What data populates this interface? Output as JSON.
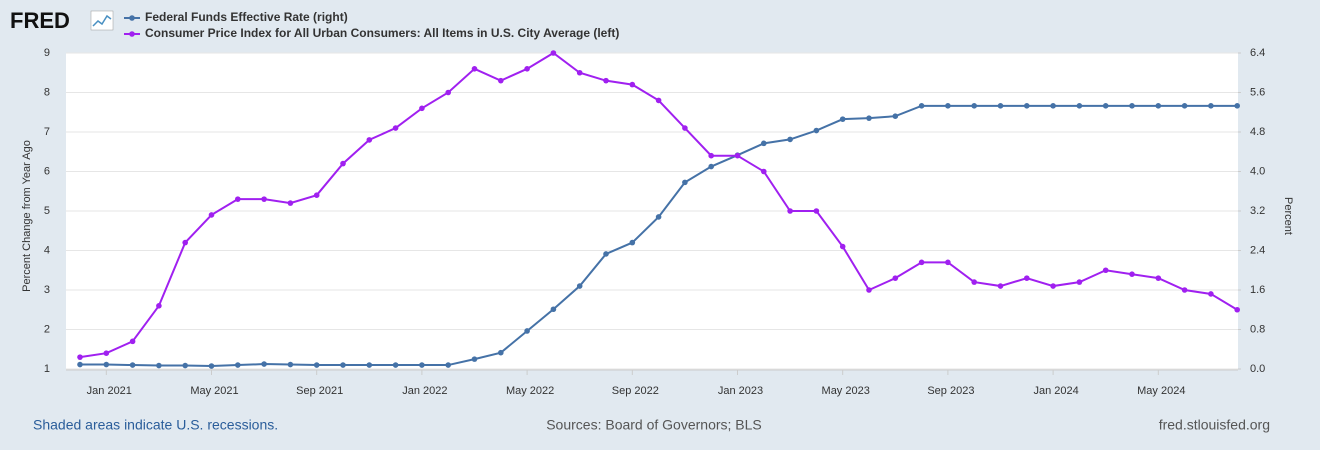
{
  "logo": "FRED",
  "chart_data": {
    "type": "line",
    "categories": [
      null,
      "Jan 2021",
      null,
      null,
      null,
      "May 2021",
      null,
      null,
      null,
      "Sep 2021",
      null,
      null,
      null,
      "Jan 2022",
      null,
      null,
      null,
      "May 2022",
      null,
      null,
      null,
      "Sep 2022",
      null,
      null,
      null,
      "Jan 2023",
      null,
      null,
      null,
      "May 2023",
      null,
      null,
      null,
      "Sep 2023",
      null,
      null,
      null,
      "Jan 2024",
      null,
      null,
      null,
      "May 2024",
      null,
      null,
      null
    ],
    "series": [
      {
        "name": "Federal Funds Effective Rate (right)",
        "color": "#4572a7",
        "axis": "y2",
        "values": [
          0.09,
          0.09,
          0.08,
          0.07,
          0.07,
          0.06,
          0.08,
          0.1,
          0.09,
          0.08,
          0.08,
          0.08,
          0.08,
          0.08,
          0.08,
          0.2,
          0.33,
          0.77,
          1.21,
          1.68,
          2.33,
          2.56,
          3.08,
          3.78,
          4.1,
          4.33,
          4.57,
          4.65,
          4.83,
          5.06,
          5.08,
          5.12,
          5.33,
          5.33,
          5.33,
          5.33,
          5.33,
          5.33,
          5.33,
          5.33,
          5.33,
          5.33,
          5.33,
          5.33,
          5.33
        ]
      },
      {
        "name": "Consumer Price Index for All Urban Consumers: All Items in U.S. City Average (left)",
        "color": "#a020f0",
        "axis": "y",
        "values": [
          1.3,
          1.4,
          1.7,
          2.6,
          4.2,
          4.9,
          5.3,
          5.3,
          5.2,
          5.4,
          6.2,
          6.8,
          7.1,
          7.6,
          8.0,
          8.6,
          8.3,
          8.6,
          9.0,
          8.5,
          8.3,
          8.2,
          7.8,
          7.1,
          6.4,
          6.4,
          6.0,
          5.0,
          5.0,
          4.1,
          3.0,
          3.3,
          3.7,
          3.7,
          3.2,
          3.1,
          3.3,
          3.1,
          3.2,
          3.5,
          3.4,
          3.3,
          3.0,
          2.9,
          2.5
        ]
      }
    ],
    "ylabel": "Percent Change from Year Ago",
    "y2label": "Percent",
    "ylim": [
      1,
      9
    ],
    "yticks": [
      1,
      2,
      3,
      4,
      5,
      6,
      7,
      8,
      9
    ],
    "y2lim": [
      0,
      6.4
    ],
    "y2ticks": [
      {
        "value": 0,
        "label": "0.0"
      },
      0.8,
      1.6,
      2.4,
      3.2,
      {
        "value": 4,
        "label": "4.0"
      },
      4.8,
      5.6,
      6.4
    ],
    "grid": true
  },
  "footer": {
    "note": "Shaded areas indicate U.S. recessions.",
    "source": "Sources: Board of Governors; BLS",
    "site": "fred.stlouisfed.org"
  }
}
